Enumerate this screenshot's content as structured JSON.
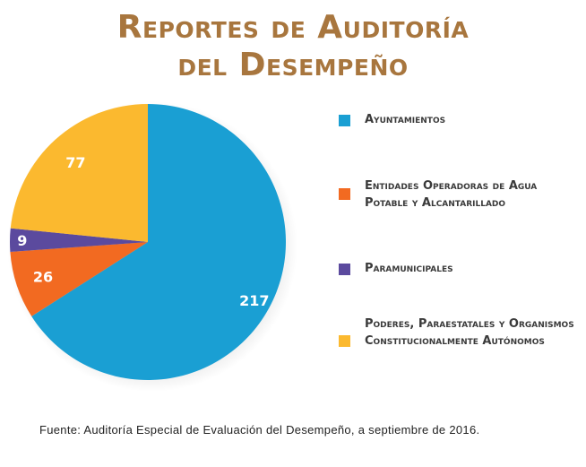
{
  "title": {
    "line1": "Reportes de Auditoría",
    "line2": "del Desempeño"
  },
  "chart_data": {
    "type": "pie",
    "title": "Reportes de Auditoría del Desempeño",
    "slices": [
      {
        "label": "Ayuntamientos",
        "value": 217,
        "color": "#1a9fd3"
      },
      {
        "label": "Entidades Operadoras de Agua Potable y Alcantarillado",
        "value": 26,
        "color": "#f26a21"
      },
      {
        "label": "Paramunicipales",
        "value": 9,
        "color": "#5b4a9e"
      },
      {
        "label": "Poderes, Paraestatales y Organismos Constitucionalmente Autónomos",
        "value": 77,
        "color": "#fbb92f"
      }
    ],
    "legend_position": "right"
  },
  "source": "Fuente: Auditoría Especial de Evaluación del Desempeño, a septiembre de 2016."
}
